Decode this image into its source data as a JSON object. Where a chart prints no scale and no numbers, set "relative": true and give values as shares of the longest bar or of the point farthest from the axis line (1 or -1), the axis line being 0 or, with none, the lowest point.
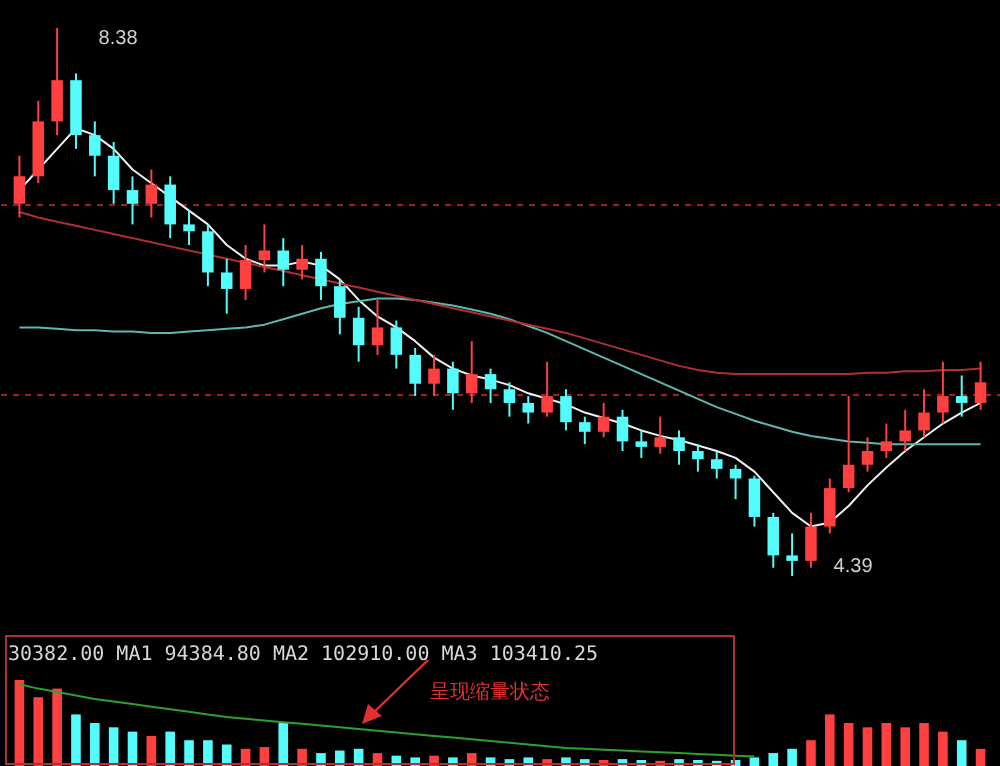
{
  "chart_data": [
    {
      "type": "candlestick",
      "categories": [
        null,
        null,
        null,
        null,
        null,
        null,
        null,
        null,
        null,
        null,
        null,
        null,
        null,
        null,
        null,
        null,
        null,
        null,
        null,
        null,
        null,
        null,
        null,
        null,
        null,
        null,
        null,
        null,
        null,
        null,
        null,
        null,
        null,
        null,
        null,
        null,
        null,
        null,
        null,
        null,
        null,
        null,
        null,
        null,
        null,
        null,
        null,
        null,
        null,
        null,
        null,
        null
      ],
      "ohlc": [
        [
          7.1,
          7.45,
          7.0,
          7.3
        ],
        [
          7.3,
          7.85,
          7.25,
          7.7
        ],
        [
          7.7,
          8.38,
          7.6,
          8.0
        ],
        [
          8.0,
          8.05,
          7.5,
          7.6
        ],
        [
          7.6,
          7.7,
          7.3,
          7.45
        ],
        [
          7.45,
          7.55,
          7.1,
          7.2
        ],
        [
          7.2,
          7.3,
          6.95,
          7.1
        ],
        [
          7.1,
          7.35,
          7.0,
          7.24
        ],
        [
          7.24,
          7.3,
          6.85,
          6.95
        ],
        [
          6.95,
          7.05,
          6.8,
          6.9
        ],
        [
          6.9,
          6.95,
          6.5,
          6.6
        ],
        [
          6.6,
          6.7,
          6.3,
          6.48
        ],
        [
          6.48,
          6.8,
          6.4,
          6.69
        ],
        [
          6.69,
          6.95,
          6.6,
          6.76
        ],
        [
          6.76,
          6.85,
          6.5,
          6.62
        ],
        [
          6.62,
          6.8,
          6.55,
          6.7
        ],
        [
          6.7,
          6.75,
          6.4,
          6.5
        ],
        [
          6.5,
          6.55,
          6.15,
          6.27
        ],
        [
          6.27,
          6.35,
          5.95,
          6.07
        ],
        [
          6.07,
          6.4,
          6.0,
          6.2
        ],
        [
          6.2,
          6.25,
          5.9,
          6.0
        ],
        [
          6.0,
          6.05,
          5.7,
          5.79
        ],
        [
          5.79,
          6.0,
          5.7,
          5.9
        ],
        [
          5.9,
          5.95,
          5.6,
          5.72
        ],
        [
          5.72,
          6.1,
          5.65,
          5.86
        ],
        [
          5.86,
          5.9,
          5.65,
          5.75
        ],
        [
          5.75,
          5.8,
          5.55,
          5.65
        ],
        [
          5.65,
          5.7,
          5.5,
          5.58
        ],
        [
          5.58,
          5.95,
          5.55,
          5.7
        ],
        [
          5.7,
          5.75,
          5.45,
          5.51
        ],
        [
          5.51,
          5.55,
          5.35,
          5.44
        ],
        [
          5.44,
          5.65,
          5.4,
          5.55
        ],
        [
          5.55,
          5.6,
          5.3,
          5.37
        ],
        [
          5.37,
          5.45,
          5.25,
          5.33
        ],
        [
          5.33,
          5.55,
          5.28,
          5.4
        ],
        [
          5.4,
          5.45,
          5.2,
          5.3
        ],
        [
          5.3,
          5.35,
          5.15,
          5.24
        ],
        [
          5.24,
          5.3,
          5.1,
          5.17
        ],
        [
          5.17,
          5.2,
          4.95,
          5.1
        ],
        [
          5.1,
          5.12,
          4.75,
          4.82
        ],
        [
          4.82,
          4.85,
          4.45,
          4.54
        ],
        [
          4.54,
          4.7,
          4.39,
          4.5
        ],
        [
          4.5,
          4.85,
          4.45,
          4.75
        ],
        [
          4.75,
          5.1,
          4.7,
          5.03
        ],
        [
          5.03,
          5.7,
          5.0,
          5.2
        ],
        [
          5.2,
          5.4,
          5.15,
          5.3
        ],
        [
          5.3,
          5.5,
          5.25,
          5.37
        ],
        [
          5.37,
          5.6,
          5.3,
          5.45
        ],
        [
          5.45,
          5.75,
          5.4,
          5.58
        ],
        [
          5.58,
          5.95,
          5.5,
          5.7
        ],
        [
          5.7,
          5.85,
          5.55,
          5.65
        ],
        [
          5.65,
          5.95,
          5.6,
          5.8
        ]
      ],
      "colors": [
        "#ff4040",
        "#ff4040",
        "#ff4040",
        "#54fcfc",
        "#54fcfc",
        "#54fcfc",
        "#54fcfc",
        "#ff4040",
        "#54fcfc",
        "#54fcfc",
        "#54fcfc",
        "#54fcfc",
        "#ff4040",
        "#ff4040",
        "#54fcfc",
        "#ff4040",
        "#54fcfc",
        "#54fcfc",
        "#54fcfc",
        "#ff4040",
        "#54fcfc",
        "#54fcfc",
        "#ff4040",
        "#54fcfc",
        "#ff4040",
        "#54fcfc",
        "#54fcfc",
        "#54fcfc",
        "#ff4040",
        "#54fcfc",
        "#54fcfc",
        "#ff4040",
        "#54fcfc",
        "#54fcfc",
        "#ff4040",
        "#54fcfc",
        "#54fcfc",
        "#54fcfc",
        "#54fcfc",
        "#54fcfc",
        "#54fcfc",
        "#54fcfc",
        "#ff4040",
        "#ff4040",
        "#ff4040",
        "#ff4040",
        "#ff4040",
        "#ff4040",
        "#ff4040",
        "#ff4040",
        "#54fcfc",
        "#ff4040"
      ],
      "series": [
        {
          "type": "line",
          "color": "#f0f0f0",
          "values": [
            7.2,
            7.35,
            7.5,
            7.65,
            7.6,
            7.5,
            7.35,
            7.25,
            7.15,
            7.05,
            6.95,
            6.8,
            6.7,
            6.65,
            6.65,
            6.68,
            6.65,
            6.55,
            6.4,
            6.28,
            6.2,
            6.1,
            5.98,
            5.9,
            5.85,
            5.82,
            5.78,
            5.72,
            5.68,
            5.64,
            5.58,
            5.54,
            5.5,
            5.45,
            5.41,
            5.38,
            5.34,
            5.3,
            5.25,
            5.15,
            5.0,
            4.85,
            4.75,
            4.78,
            4.9,
            5.05,
            5.18,
            5.3,
            5.4,
            5.5,
            5.58,
            5.65
          ]
        },
        {
          "type": "line",
          "color": "#5fb8b0",
          "values": [
            6.2,
            6.2,
            6.19,
            6.18,
            6.18,
            6.17,
            6.17,
            6.16,
            6.16,
            6.17,
            6.18,
            6.19,
            6.2,
            6.22,
            6.26,
            6.3,
            6.34,
            6.37,
            6.39,
            6.41,
            6.41,
            6.4,
            6.38,
            6.36,
            6.33,
            6.3,
            6.26,
            6.21,
            6.16,
            6.1,
            6.04,
            5.98,
            5.92,
            5.86,
            5.8,
            5.74,
            5.68,
            5.62,
            5.57,
            5.52,
            5.48,
            5.44,
            5.41,
            5.39,
            5.37,
            5.36,
            5.35,
            5.35,
            5.35,
            5.35,
            5.35,
            5.35
          ]
        },
        {
          "type": "line",
          "color": "#b03030",
          "values": [
            7.04,
            7.0,
            6.97,
            6.94,
            6.91,
            6.88,
            6.85,
            6.82,
            6.79,
            6.76,
            6.73,
            6.7,
            6.67,
            6.64,
            6.61,
            6.58,
            6.55,
            6.52,
            6.49,
            6.46,
            6.43,
            6.4,
            6.37,
            6.34,
            6.31,
            6.28,
            6.25,
            6.22,
            6.19,
            6.16,
            6.12,
            6.08,
            6.04,
            6.0,
            5.96,
            5.92,
            5.89,
            5.87,
            5.86,
            5.86,
            5.86,
            5.86,
            5.86,
            5.86,
            5.86,
            5.87,
            5.87,
            5.88,
            5.88,
            5.89,
            5.89,
            5.9
          ]
        }
      ],
      "yticks": [
        {
          "value": 7.1,
          "label": null
        },
        {
          "value": 5.72,
          "label": null
        }
      ],
      "grid": "y",
      "tick_labels": false,
      "annotations": [
        "8.38",
        "4.39"
      ]
    },
    {
      "type": "bar",
      "relative": true,
      "categories": [
        null,
        null,
        null,
        null,
        null,
        null,
        null,
        null,
        null,
        null,
        null,
        null,
        null,
        null,
        null,
        null,
        null,
        null,
        null,
        null,
        null,
        null,
        null,
        null,
        null,
        null,
        null,
        null,
        null,
        null,
        null,
        null,
        null,
        null,
        null,
        null,
        null,
        null,
        null,
        null,
        null,
        null,
        null,
        null,
        null,
        null,
        null,
        null,
        null,
        null,
        null,
        null
      ],
      "series": [
        {
          "type": "bar",
          "colors": [
            "#ff4040",
            "#ff4040",
            "#ff4040",
            "#54fcfc",
            "#54fcfc",
            "#54fcfc",
            "#54fcfc",
            "#ff4040",
            "#54fcfc",
            "#54fcfc",
            "#54fcfc",
            "#54fcfc",
            "#ff4040",
            "#ff4040",
            "#54fcfc",
            "#ff4040",
            "#54fcfc",
            "#54fcfc",
            "#54fcfc",
            "#ff4040",
            "#54fcfc",
            "#54fcfc",
            "#ff4040",
            "#54fcfc",
            "#ff4040",
            "#54fcfc",
            "#54fcfc",
            "#54fcfc",
            "#ff4040",
            "#54fcfc",
            "#54fcfc",
            "#ff4040",
            "#54fcfc",
            "#54fcfc",
            "#ff4040",
            "#54fcfc",
            "#54fcfc",
            "#54fcfc",
            "#54fcfc",
            "#54fcfc",
            "#54fcfc",
            "#54fcfc",
            "#ff4040",
            "#ff4040",
            "#ff4040",
            "#ff4040",
            "#ff4040",
            "#ff4040",
            "#ff4040",
            "#ff4040",
            "#54fcfc",
            "#ff4040"
          ],
          "values": [
            1,
            0.8,
            0.9,
            0.6,
            0.5,
            0.45,
            0.4,
            0.35,
            0.4,
            0.3,
            0.3,
            0.25,
            0.2,
            0.22,
            0.5,
            0.2,
            0.15,
            0.18,
            0.2,
            0.15,
            0.12,
            0.1,
            0.12,
            0.1,
            0.15,
            0.1,
            0.08,
            0.1,
            0.08,
            0.1,
            0.08,
            0.07,
            0.08,
            0.07,
            0.06,
            0.08,
            0.07,
            0.06,
            0.07,
            0.1,
            0.15,
            0.2,
            0.3,
            0.6,
            0.5,
            0.45,
            0.5,
            0.45,
            0.5,
            0.4,
            0.3,
            0.2
          ]
        },
        {
          "type": "line",
          "color": "#2ea02e",
          "values": [
            0.95,
            0.9,
            0.86,
            0.82,
            0.78,
            0.75,
            0.72,
            0.69,
            0.66,
            0.63,
            0.6,
            0.57,
            0.55,
            0.53,
            0.51,
            0.49,
            0.47,
            0.45,
            0.43,
            0.41,
            0.39,
            0.37,
            0.35,
            0.33,
            0.31,
            0.29,
            0.27,
            0.25,
            0.23,
            0.21,
            0.2,
            0.19,
            0.18,
            0.17,
            0.16,
            0.15,
            0.14,
            0.13,
            0.12,
            0.11,
            null,
            null,
            null,
            null,
            null,
            null,
            null,
            null,
            null,
            null,
            null,
            null
          ]
        }
      ],
      "annotations": [
        "30382.00 MA1 94384.80 MA2 102910.00 MA3 103410.25",
        "呈现缩量状态"
      ]
    }
  ]
}
